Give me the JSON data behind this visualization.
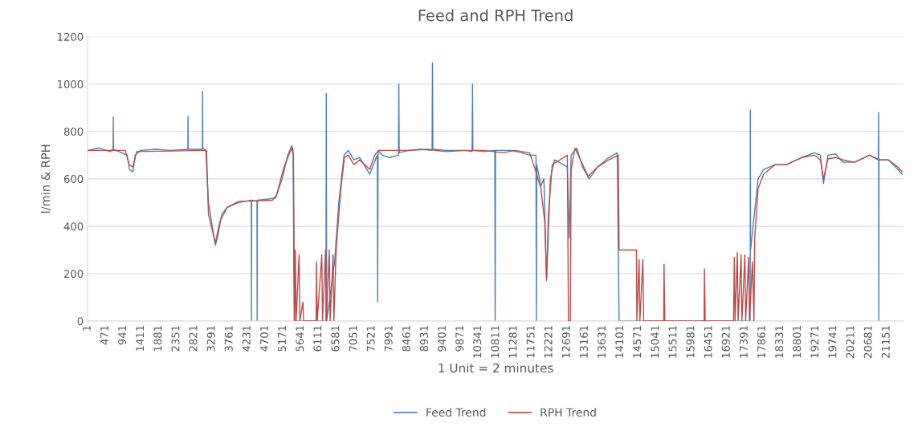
{
  "chart_data": {
    "type": "line",
    "title": "Feed and RPH Trend",
    "xlabel": "1 Unit = 2 minutes",
    "ylabel": "l/min & RPH",
    "xlim": [
      1,
      21600
    ],
    "xticks": [
      1,
      471,
      941,
      1411,
      1881,
      2351,
      2821,
      3291,
      3761,
      4231,
      4701,
      5171,
      5641,
      6111,
      6581,
      7051,
      7521,
      7991,
      8461,
      8931,
      9401,
      9871,
      10341,
      10811,
      11281,
      11751,
      12221,
      12691,
      13161,
      13631,
      14101,
      14571,
      15041,
      15511,
      15981,
      16451,
      16921,
      17391,
      17861,
      18331,
      18801,
      19271,
      19741,
      20211,
      20681,
      21151
    ],
    "ylim": [
      0,
      1200
    ],
    "yticks": [
      0,
      200,
      400,
      600,
      800,
      1000,
      1200
    ],
    "grid": "y",
    "legend": "bottom",
    "marker": "none",
    "line_style": "solid",
    "series": [
      {
        "name": "Feed Trend",
        "color": "#4a7ebb",
        "x": [
          1,
          300,
          600,
          677,
          682,
          687,
          900,
          1050,
          1110,
          1200,
          1260,
          1400,
          1800,
          2200,
          2655,
          2660,
          2665,
          3040,
          3045,
          3050,
          3130,
          3200,
          3300,
          3385,
          3450,
          3550,
          3700,
          4000,
          4335,
          4340,
          4345,
          4485,
          4490,
          4495,
          4800,
          4980,
          5150,
          5300,
          5405,
          5440,
          5470,
          6310,
          6320,
          6330,
          6540,
          6650,
          6790,
          6900,
          7050,
          7200,
          7470,
          7670,
          7680,
          7690,
          7800,
          8000,
          8230,
          8240,
          8250,
          8500,
          8800,
          9120,
          9130,
          9140,
          9500,
          10000,
          10180,
          10190,
          10200,
          10500,
          10780,
          10790,
          10800,
          11200,
          11500,
          11700,
          11870,
          11880,
          11890,
          12000,
          12080,
          12150,
          12250,
          12360,
          12600,
          12700,
          12750,
          12800,
          12950,
          13100,
          13280,
          13500,
          13800,
          14020,
          14070,
          14500,
          17540,
          17545,
          17550,
          17650,
          17750,
          17900,
          18200,
          18500,
          18900,
          19240,
          19400,
          19480,
          19600,
          19800,
          20000,
          20300,
          20700,
          20930,
          20940,
          20945,
          20950,
          21200,
          21450,
          21560
        ],
        "values": [
          720,
          730,
          715,
          725,
          860,
          725,
          710,
          700,
          640,
          630,
          700,
          720,
          725,
          720,
          725,
          865,
          725,
          725,
          970,
          730,
          720,
          500,
          400,
          320,
          360,
          450,
          480,
          500,
          510,
          0,
          510,
          505,
          0,
          510,
          515,
          520,
          600,
          700,
          740,
          720,
          0,
          0,
          960,
          0,
          250,
          500,
          700,
          720,
          680,
          690,
          620,
          700,
          80,
          720,
          700,
          690,
          700,
          1000,
          710,
          720,
          725,
          720,
          1090,
          725,
          720,
          720,
          715,
          1000,
          720,
          715,
          720,
          0,
          720,
          720,
          710,
          700,
          700,
          0,
          660,
          570,
          600,
          170,
          600,
          680,
          660,
          650,
          350,
          700,
          730,
          650,
          600,
          650,
          690,
          710,
          0,
          0,
          0,
          890,
          300,
          450,
          600,
          640,
          660,
          660,
          690,
          710,
          700,
          580,
          700,
          705,
          670,
          670,
          700,
          680,
          880,
          0,
          680,
          680,
          640,
          620
        ]
      },
      {
        "name": "RPH Trend",
        "color": "#be4b48",
        "x": [
          1,
          1000,
          1100,
          1200,
          1300,
          3100,
          3150,
          3200,
          3385,
          3500,
          3700,
          4000,
          4900,
          5000,
          5200,
          5405,
          5450,
          5480,
          5500,
          5520,
          5600,
          5620,
          5700,
          5720,
          6050,
          6060,
          6080,
          6200,
          6220,
          6300,
          6320,
          6400,
          6420,
          6500,
          6520,
          6580,
          6700,
          6800,
          6900,
          7050,
          7200,
          7470,
          7600,
          7700,
          8000,
          8500,
          9000,
          9500,
          10000,
          10500,
          11000,
          11300,
          11700,
          11850,
          12000,
          12100,
          12150,
          12200,
          12300,
          12500,
          12700,
          12730,
          12780,
          12800,
          12900,
          13050,
          13250,
          13500,
          13800,
          14050,
          14070,
          14530,
          14540,
          14600,
          14620,
          14700,
          14720,
          15250,
          15260,
          15280,
          16320,
          16330,
          16350,
          17100,
          17120,
          17140,
          17200,
          17220,
          17300,
          17320,
          17400,
          17420,
          17500,
          17520,
          17600,
          17640,
          17660,
          17750,
          17900,
          18200,
          18500,
          18900,
          19240,
          19400,
          19480,
          19600,
          19800,
          20000,
          20300,
          20700,
          20950,
          21200,
          21450,
          21560
        ],
        "values": [
          720,
          720,
          660,
          650,
          715,
          720,
          720,
          450,
          330,
          420,
          480,
          505,
          510,
          530,
          650,
          730,
          700,
          0,
          300,
          0,
          280,
          0,
          80,
          0,
          0,
          250,
          0,
          280,
          0,
          300,
          0,
          300,
          0,
          280,
          0,
          300,
          550,
          690,
          700,
          660,
          680,
          640,
          700,
          720,
          720,
          720,
          725,
          715,
          720,
          720,
          710,
          720,
          710,
          640,
          560,
          420,
          180,
          450,
          660,
          680,
          700,
          0,
          0,
          640,
          730,
          680,
          610,
          650,
          680,
          700,
          300,
          300,
          0,
          260,
          0,
          260,
          0,
          0,
          240,
          0,
          0,
          220,
          0,
          0,
          270,
          0,
          290,
          0,
          280,
          0,
          280,
          0,
          270,
          0,
          250,
          0,
          350,
          560,
          620,
          660,
          660,
          690,
          700,
          680,
          600,
          685,
          690,
          680,
          670,
          700,
          680,
          680,
          650,
          630
        ]
      }
    ]
  }
}
